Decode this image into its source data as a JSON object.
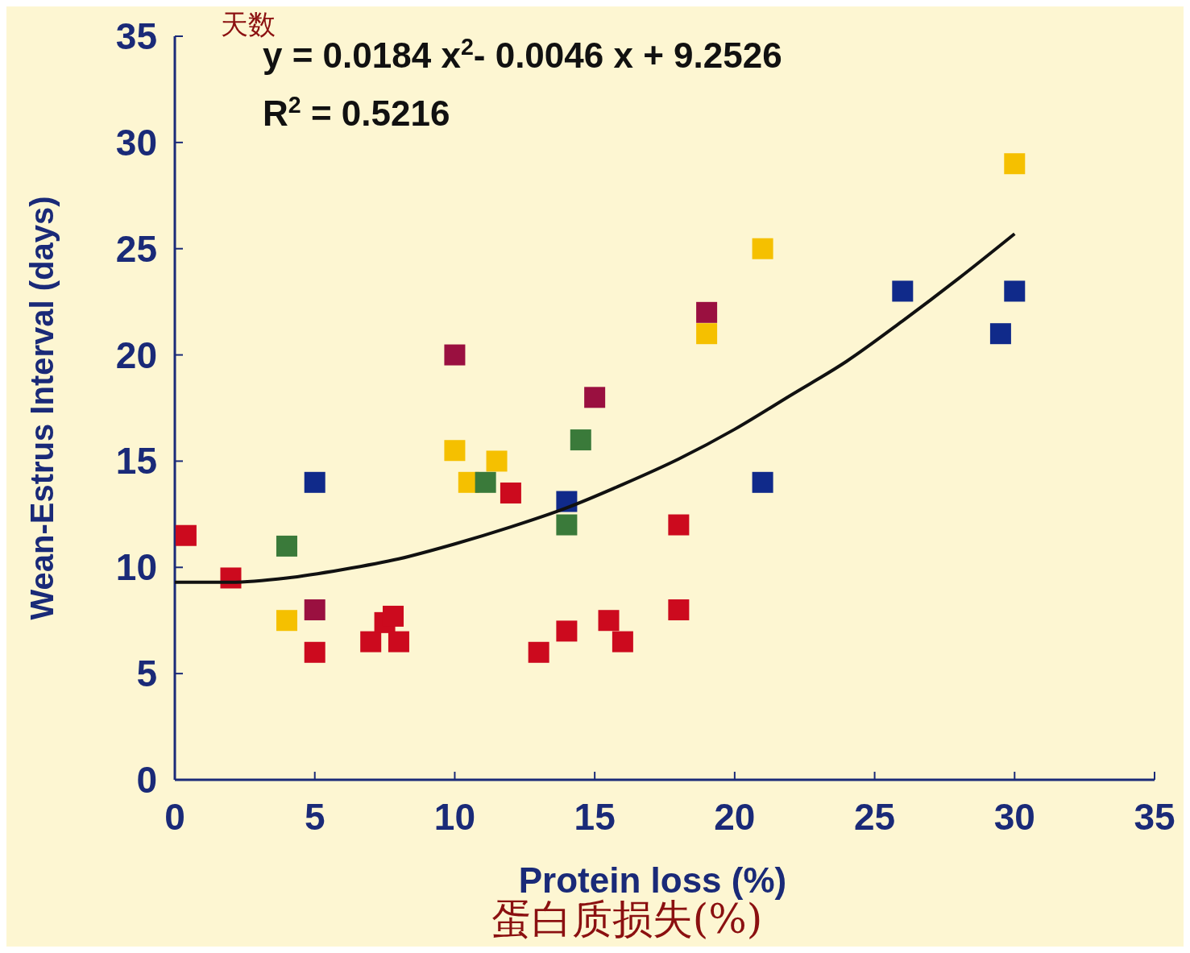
{
  "chart_data": {
    "type": "scatter",
    "xlabel": "Protein loss (%)",
    "ylabel": "Wean-Estrus Interval (days)",
    "xlim": [
      0,
      35
    ],
    "ylim": [
      0,
      35
    ],
    "xticks": [
      0,
      5,
      10,
      15,
      20,
      25,
      30,
      35
    ],
    "yticks": [
      0,
      5,
      10,
      15,
      20,
      25,
      30,
      35
    ],
    "grid": false,
    "marker": "square",
    "annotations": [
      "y = 0.0184 x$^{2}$- 0.0046 x + 9.2526",
      "R$^{2}$ = 0.5216",
      "天数",
      "蛋白质损失(%)"
    ],
    "series": [
      {
        "color": "#cc0a1e",
        "x": [
          0.4,
          2,
          5,
          7,
          7.5,
          7.8,
          8,
          12,
          13,
          14,
          15.5,
          16,
          18,
          18
        ],
        "values": [
          11.5,
          9.5,
          6,
          6.5,
          7.4,
          7.7,
          6.5,
          13.5,
          6,
          7,
          7.5,
          6.5,
          12,
          8
        ]
      },
      {
        "color": "#9a1040",
        "x": [
          5,
          10,
          15,
          19
        ],
        "values": [
          8,
          20,
          18,
          22
        ]
      },
      {
        "color": "#f5c000",
        "x": [
          4,
          10,
          10.5,
          11.5,
          19,
          21,
          30
        ],
        "values": [
          7.5,
          15.5,
          14,
          15,
          21,
          25,
          29
        ]
      },
      {
        "color": "#3a7a3a",
        "x": [
          4,
          11.1,
          14,
          14.5
        ],
        "values": [
          11,
          14,
          12,
          16
        ]
      },
      {
        "color": "#102a8a",
        "x": [
          5,
          14,
          21,
          26,
          29.5,
          30
        ],
        "values": [
          14,
          13.1,
          14,
          23,
          21,
          23
        ]
      },
      {
        "type": "line",
        "color": "#111111",
        "marker": "none",
        "line_style": "solid",
        "x": [
          0,
          2,
          4,
          6,
          8,
          10,
          12,
          14,
          16,
          18,
          20,
          22,
          24,
          26,
          28,
          30
        ],
        "values": [
          9.3,
          9.3,
          9.5,
          9.9,
          10.4,
          11.1,
          11.9,
          12.8,
          13.9,
          15.1,
          16.5,
          18.1,
          19.7,
          21.6,
          23.6,
          25.7
        ]
      }
    ]
  }
}
